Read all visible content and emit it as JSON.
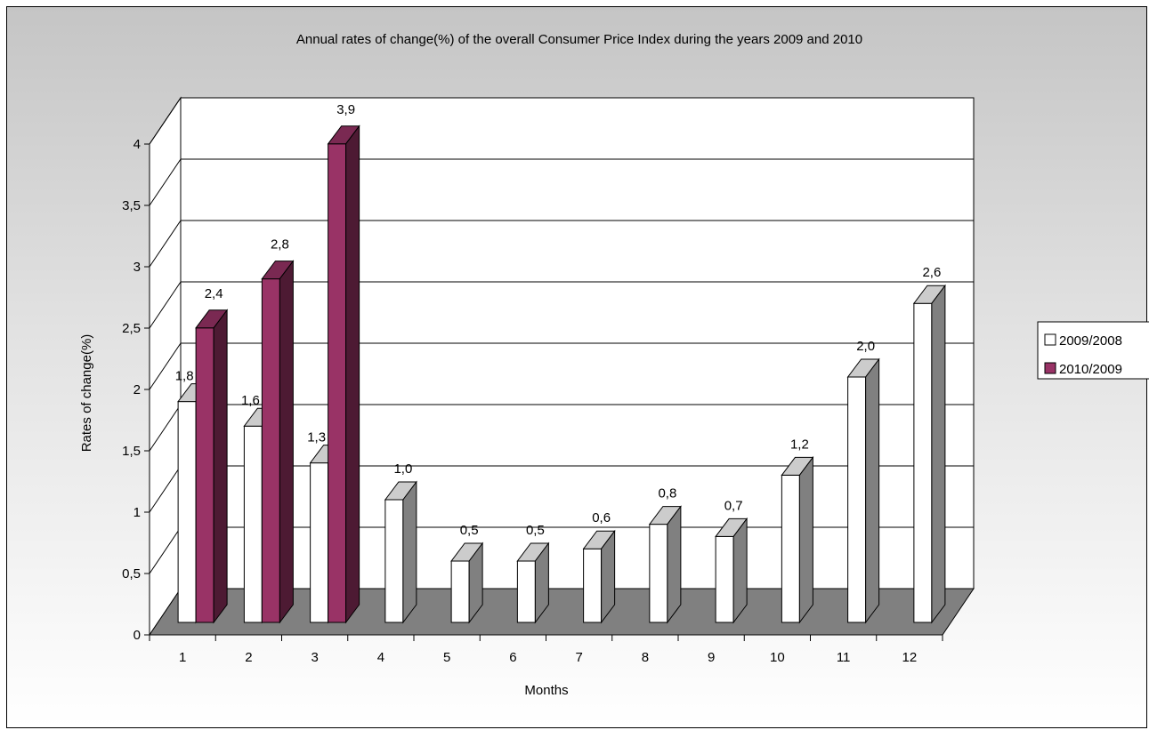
{
  "chart_data": {
    "type": "bar",
    "title": "Annual rates of change(%) of the overall Consumer Price Index during the years 2009 and 2010",
    "xlabel": "Months",
    "ylabel": "Rates of change(%)",
    "categories": [
      "1",
      "2",
      "3",
      "4",
      "5",
      "6",
      "7",
      "8",
      "9",
      "10",
      "11",
      "12"
    ],
    "yticks": [
      "0",
      "0,5",
      "1",
      "1,5",
      "2",
      "2,5",
      "3",
      "3,5",
      "4"
    ],
    "ylim": [
      0,
      4
    ],
    "grid": true,
    "legend_position": "right",
    "view": "3d-clustered-column",
    "series": [
      {
        "name": "2009/2008",
        "color": "#ffffff",
        "values": [
          1.8,
          1.6,
          1.3,
          1.0,
          0.5,
          0.5,
          0.6,
          0.8,
          0.7,
          1.2,
          2.0,
          2.6
        ],
        "labels": [
          "1,8",
          "1,6",
          "1,3",
          "1,0",
          "0,5",
          "0,5",
          "0,6",
          "0,8",
          "0,7",
          "1,2",
          "2,0",
          "2,6"
        ]
      },
      {
        "name": "2010/2009",
        "color": "#993366",
        "values": [
          2.4,
          2.8,
          3.9,
          null,
          null,
          null,
          null,
          null,
          null,
          null,
          null,
          null
        ],
        "labels": [
          "2,4",
          "2,8",
          "3,9",
          "",
          "",
          "",
          "",
          "",
          "",
          "",
          "",
          ""
        ]
      }
    ],
    "floor_color": "#808080",
    "wall_color": "#ffffff"
  }
}
